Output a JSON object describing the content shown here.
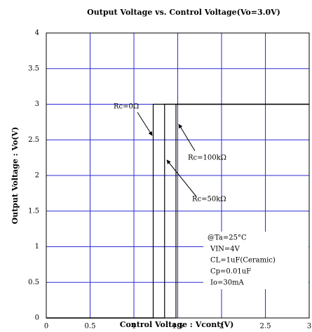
{
  "chart_data": {
    "type": "line",
    "title": "Output Voltage vs. Control Voltage(Vo=3.0V)",
    "x_label": "Control Voltage : Vcont(V)",
    "y_label": "Output Voltage : Vo(V)",
    "series": [
      {
        "name": "Rc=0Ω",
        "color": "#000000",
        "x": [
          0,
          1.22,
          1.22,
          3
        ],
        "values": [
          0,
          0,
          3,
          3
        ]
      },
      {
        "name": "Rc=50kΩ",
        "color": "#000000",
        "x": [
          0,
          1.35,
          1.35,
          3
        ],
        "values": [
          0,
          0,
          3,
          3
        ]
      },
      {
        "name": "Rc=100kΩ",
        "color": "#000000",
        "x": [
          0,
          1.48,
          1.48,
          3
        ],
        "values": [
          0,
          0,
          3,
          3
        ]
      }
    ],
    "annotations": [
      "@Ta=25°C",
      "VIN=4V",
      "CL=1uF(Ceramic)",
      "Cp=0.01uF",
      "Io=30mA"
    ],
    "xlim": [
      0,
      3
    ],
    "xticks": [
      0,
      0.5,
      1,
      1.5,
      2,
      2.5,
      3
    ],
    "ylim": [
      0,
      4
    ],
    "yticks": [
      0,
      0.5,
      1,
      1.5,
      2,
      2.5,
      3,
      3.5,
      4
    ],
    "grid": true,
    "grid_color": "#2b2bd6"
  }
}
